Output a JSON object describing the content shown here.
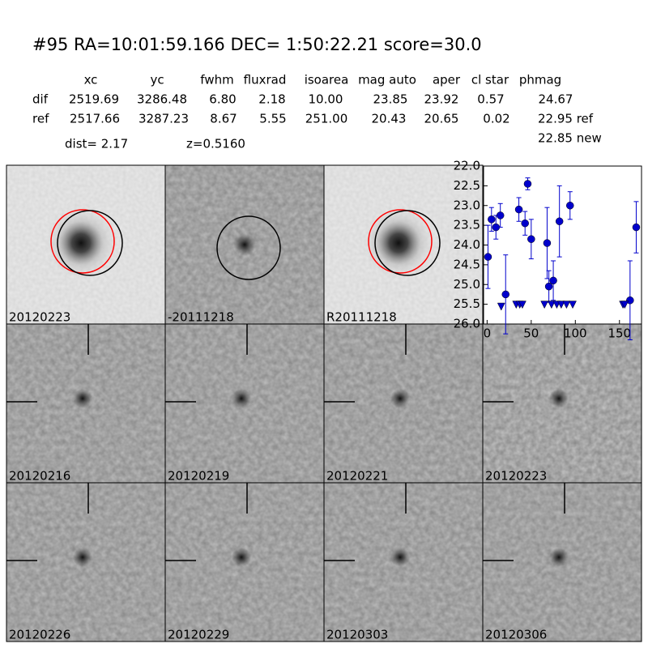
{
  "header": {
    "title": "#95   RA=10:01:59.166 DEC= 1:50:22.21      score=30.0"
  },
  "table": {
    "columns": [
      "xc",
      "yc",
      "fwhm",
      "fluxrad",
      "isoarea",
      "mag auto",
      "aper",
      "cl star",
      "phmag"
    ],
    "rows": [
      {
        "label": "dif",
        "cells": [
          "2519.69",
          "3286.48",
          "6.80",
          "2.18",
          "10.00",
          "23.85",
          "23.92",
          "0.57",
          "24.67"
        ]
      },
      {
        "label": "ref",
        "cells": [
          "2517.66",
          "3287.23",
          "8.67",
          "5.55",
          "251.00",
          "20.43",
          "20.65",
          "0.02",
          "22.95 ref"
        ]
      }
    ],
    "note": "22.85 new"
  },
  "dist": "dist=  2.17",
  "redshift": "z=0.5160",
  "stamps": [
    {
      "label": "20120223"
    },
    {
      "label": "-20111218"
    },
    {
      "label": "R20111218"
    },
    {
      "label": "20120216"
    },
    {
      "label": "20120219"
    },
    {
      "label": "20120221"
    },
    {
      "label": "20120223",
      "color": "#ff0000"
    },
    {
      "label": "20120226"
    },
    {
      "label": "20120229"
    },
    {
      "label": "20120303"
    },
    {
      "label": "20120306"
    }
  ],
  "chart_data": {
    "type": "scatter",
    "xlim": [
      -4,
      175
    ],
    "xticks": [
      0,
      50,
      100,
      150
    ],
    "ylim": [
      22.0,
      26.0
    ],
    "inverted": true,
    "yticks": [
      {
        "value": 22.0,
        "label": "22.0"
      },
      {
        "value": 22.5,
        "label": "22.5"
      },
      {
        "value": 23.0,
        "label": "23.0"
      },
      {
        "value": 23.5,
        "label": "23.5"
      },
      {
        "value": 24.0,
        "label": "24.0"
      },
      {
        "value": 24.5,
        "label": "24.5"
      },
      {
        "value": 25.0,
        "label": "25.0"
      },
      {
        "value": 25.5,
        "label": "25.5"
      },
      {
        "value": 26.0,
        "label": "26.0"
      }
    ],
    "color": "#0000cc",
    "detections": {
      "x": [
        1,
        5,
        10,
        15,
        21,
        36,
        43,
        46,
        50,
        68,
        70,
        75,
        82,
        94,
        162,
        169
      ],
      "values": [
        24.3,
        23.35,
        23.55,
        23.25,
        25.25,
        23.1,
        23.45,
        22.45,
        23.85,
        23.95,
        25.05,
        24.9,
        23.4,
        23.0,
        25.4,
        23.55
      ],
      "errors": [
        0.8,
        0.3,
        0.3,
        0.3,
        1.0,
        0.3,
        0.3,
        0.15,
        0.5,
        0.9,
        0.4,
        0.5,
        0.9,
        0.35,
        1.0,
        0.65
      ]
    },
    "limits": {
      "x": [
        16,
        33,
        37,
        40,
        65,
        73,
        79,
        84,
        90,
        97,
        154,
        156
      ],
      "values": [
        25.55,
        25.5,
        25.5,
        25.5,
        25.5,
        25.5,
        25.5,
        25.5,
        25.5,
        25.5,
        25.5,
        25.5
      ]
    }
  }
}
